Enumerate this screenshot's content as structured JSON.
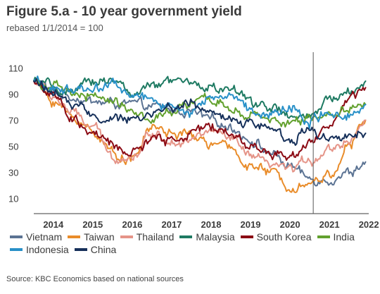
{
  "chart_data": {
    "type": "line",
    "title": "Figure 5.a - 10 year government yield",
    "subtitle": "rebased 1/1/2014 = 100",
    "source": "Source: KBC Economics based on national sources",
    "xlabel": "",
    "ylabel": "",
    "x_ticks": [
      "2014",
      "2015",
      "2016",
      "2017",
      "2018",
      "2019",
      "2020",
      "2021",
      "2022"
    ],
    "y_ticks": [
      10,
      30,
      50,
      70,
      90,
      110
    ],
    "ylim": [
      0,
      120
    ],
    "x_range": [
      "2014-01-01",
      "2022-06-30"
    ],
    "grid": false,
    "legend_position": "bottom",
    "annotations": [
      {
        "type": "vertical-line",
        "x": "2021-02-01"
      }
    ],
    "x": [
      "2014-01",
      "2014-07",
      "2015-01",
      "2015-07",
      "2016-01",
      "2016-07",
      "2017-01",
      "2017-07",
      "2018-01",
      "2018-07",
      "2019-01",
      "2019-07",
      "2020-01",
      "2020-07",
      "2021-01",
      "2021-07",
      "2022-01",
      "2022-06"
    ],
    "series": [
      {
        "name": "Vietnam",
        "color": "#5b7393",
        "values": [
          100,
          92,
          88,
          84,
          83,
          82,
          80,
          78,
          76,
          70,
          65,
          55,
          45,
          35,
          25,
          25,
          30,
          38
        ]
      },
      {
        "name": "Taiwan",
        "color": "#e98c2a",
        "values": [
          100,
          85,
          72,
          62,
          45,
          40,
          65,
          60,
          58,
          52,
          48,
          35,
          30,
          20,
          22,
          28,
          50,
          70
        ]
      },
      {
        "name": "Thailand",
        "color": "#e59488",
        "values": [
          100,
          88,
          75,
          65,
          42,
          42,
          60,
          55,
          55,
          62,
          55,
          42,
          35,
          32,
          40,
          48,
          55,
          70
        ]
      },
      {
        "name": "Malaysia",
        "color": "#1e7a62",
        "values": [
          100,
          95,
          90,
          100,
          102,
          90,
          95,
          100,
          98,
          95,
          93,
          85,
          80,
          72,
          72,
          85,
          92,
          100
        ]
      },
      {
        "name": "South Korea",
        "color": "#8b0a14",
        "values": [
          100,
          88,
          70,
          60,
          50,
          45,
          55,
          55,
          60,
          65,
          60,
          50,
          45,
          42,
          55,
          65,
          85,
          95
        ]
      },
      {
        "name": "India",
        "color": "#62a12e",
        "values": [
          100,
          95,
          90,
          88,
          85,
          78,
          70,
          75,
          83,
          85,
          80,
          72,
          70,
          68,
          72,
          75,
          80,
          82
        ]
      },
      {
        "name": "Indonesia",
        "color": "#2890c8",
        "values": [
          100,
          95,
          92,
          95,
          98,
          88,
          86,
          80,
          76,
          88,
          88,
          80,
          75,
          80,
          70,
          75,
          75,
          82
        ]
      },
      {
        "name": "China",
        "color": "#16305a",
        "values": [
          100,
          92,
          80,
          75,
          70,
          70,
          75,
          80,
          83,
          75,
          70,
          68,
          65,
          55,
          62,
          58,
          58,
          60
        ]
      }
    ]
  }
}
